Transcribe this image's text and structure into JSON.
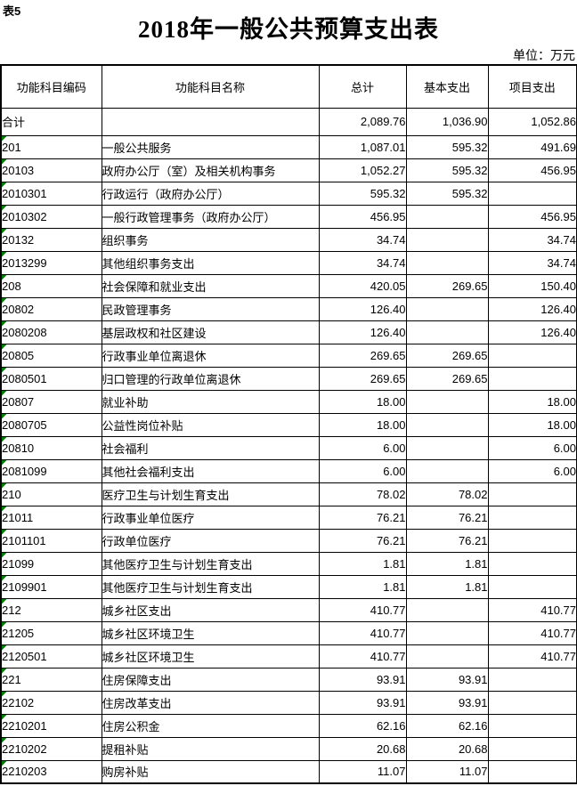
{
  "page": {
    "tag": "表5",
    "title": "2018年一般公共预算支出表",
    "unit_label": "单位：万元"
  },
  "colors": {
    "error_marker_green": "#008000",
    "border_black": "#000000",
    "background": "#ffffff"
  },
  "table": {
    "columns": [
      "功能科目编码",
      "功能科目名称",
      "总计",
      "基本支出",
      "项目支出"
    ],
    "rows": [
      {
        "code": "合计",
        "name": "",
        "total": "2,089.76",
        "basic": "1,036.90",
        "project": "1,052.86",
        "level": 0,
        "marker": false
      },
      {
        "code": "201",
        "name": "一般公共服务",
        "total": "1,087.01",
        "basic": "595.32",
        "project": "491.69",
        "level": 1,
        "marker": true
      },
      {
        "code": "20103",
        "name": "政府办公厅（室）及相关机构事务",
        "total": "1,052.27",
        "basic": "595.32",
        "project": "456.95",
        "level": 2,
        "marker": true
      },
      {
        "code": "2010301",
        "name": "行政运行（政府办公厅）",
        "total": "595.32",
        "basic": "595.32",
        "project": "",
        "level": 3,
        "marker": true
      },
      {
        "code": "2010302",
        "name": "一般行政管理事务（政府办公厅）",
        "total": "456.95",
        "basic": "",
        "project": "456.95",
        "level": 3,
        "marker": true
      },
      {
        "code": "20132",
        "name": "组织事务",
        "total": "34.74",
        "basic": "",
        "project": "34.74",
        "level": 2,
        "marker": true
      },
      {
        "code": "2013299",
        "name": "其他组织事务支出",
        "total": "34.74",
        "basic": "",
        "project": "34.74",
        "level": 3,
        "marker": true
      },
      {
        "code": "208",
        "name": "社会保障和就业支出",
        "total": "420.05",
        "basic": "269.65",
        "project": "150.40",
        "level": 1,
        "marker": true
      },
      {
        "code": "20802",
        "name": "民政管理事务",
        "total": "126.40",
        "basic": "",
        "project": "126.40",
        "level": 2,
        "marker": true
      },
      {
        "code": "2080208",
        "name": "基层政权和社区建设",
        "total": "126.40",
        "basic": "",
        "project": "126.40",
        "level": 3,
        "marker": true
      },
      {
        "code": "20805",
        "name": "行政事业单位离退休",
        "total": "269.65",
        "basic": "269.65",
        "project": "",
        "level": 2,
        "marker": true
      },
      {
        "code": "2080501",
        "name": "归口管理的行政单位离退休",
        "total": "269.65",
        "basic": "269.65",
        "project": "",
        "level": 3,
        "marker": true
      },
      {
        "code": "20807",
        "name": "就业补助",
        "total": "18.00",
        "basic": "",
        "project": "18.00",
        "level": 2,
        "marker": true
      },
      {
        "code": "2080705",
        "name": "公益性岗位补贴",
        "total": "18.00",
        "basic": "",
        "project": "18.00",
        "level": 3,
        "marker": true
      },
      {
        "code": "20810",
        "name": "社会福利",
        "total": "6.00",
        "basic": "",
        "project": "6.00",
        "level": 2,
        "marker": true
      },
      {
        "code": "2081099",
        "name": "其他社会福利支出",
        "total": "6.00",
        "basic": "",
        "project": "6.00",
        "level": 3,
        "marker": true
      },
      {
        "code": "210",
        "name": "医疗卫生与计划生育支出",
        "total": "78.02",
        "basic": "78.02",
        "project": "",
        "level": 1,
        "marker": true
      },
      {
        "code": "21011",
        "name": "行政事业单位医疗",
        "total": "76.21",
        "basic": "76.21",
        "project": "",
        "level": 2,
        "marker": true
      },
      {
        "code": "2101101",
        "name": "行政单位医疗",
        "total": "76.21",
        "basic": "76.21",
        "project": "",
        "level": 3,
        "marker": true
      },
      {
        "code": "21099",
        "name": "其他医疗卫生与计划生育支出",
        "total": "1.81",
        "basic": "1.81",
        "project": "",
        "level": 2,
        "marker": true
      },
      {
        "code": "2109901",
        "name": "其他医疗卫生与计划生育支出",
        "total": "1.81",
        "basic": "1.81",
        "project": "",
        "level": 3,
        "marker": true
      },
      {
        "code": "212",
        "name": "城乡社区支出",
        "total": "410.77",
        "basic": "",
        "project": "410.77",
        "level": 1,
        "marker": true
      },
      {
        "code": "21205",
        "name": "城乡社区环境卫生",
        "total": "410.77",
        "basic": "",
        "project": "410.77",
        "level": 2,
        "marker": true
      },
      {
        "code": "2120501",
        "name": "城乡社区环境卫生",
        "total": "410.77",
        "basic": "",
        "project": "410.77",
        "level": 3,
        "marker": true
      },
      {
        "code": "221",
        "name": "住房保障支出",
        "total": "93.91",
        "basic": "93.91",
        "project": "",
        "level": 1,
        "marker": true
      },
      {
        "code": "22102",
        "name": "住房改革支出",
        "total": "93.91",
        "basic": "93.91",
        "project": "",
        "level": 2,
        "marker": true
      },
      {
        "code": "2210201",
        "name": "住房公积金",
        "total": "62.16",
        "basic": "62.16",
        "project": "",
        "level": 3,
        "marker": true
      },
      {
        "code": "2210202",
        "name": "提租补贴",
        "total": "20.68",
        "basic": "20.68",
        "project": "",
        "level": 3,
        "marker": true
      },
      {
        "code": "2210203",
        "name": "购房补贴",
        "total": "11.07",
        "basic": "11.07",
        "project": "",
        "level": 3,
        "marker": true
      }
    ]
  }
}
